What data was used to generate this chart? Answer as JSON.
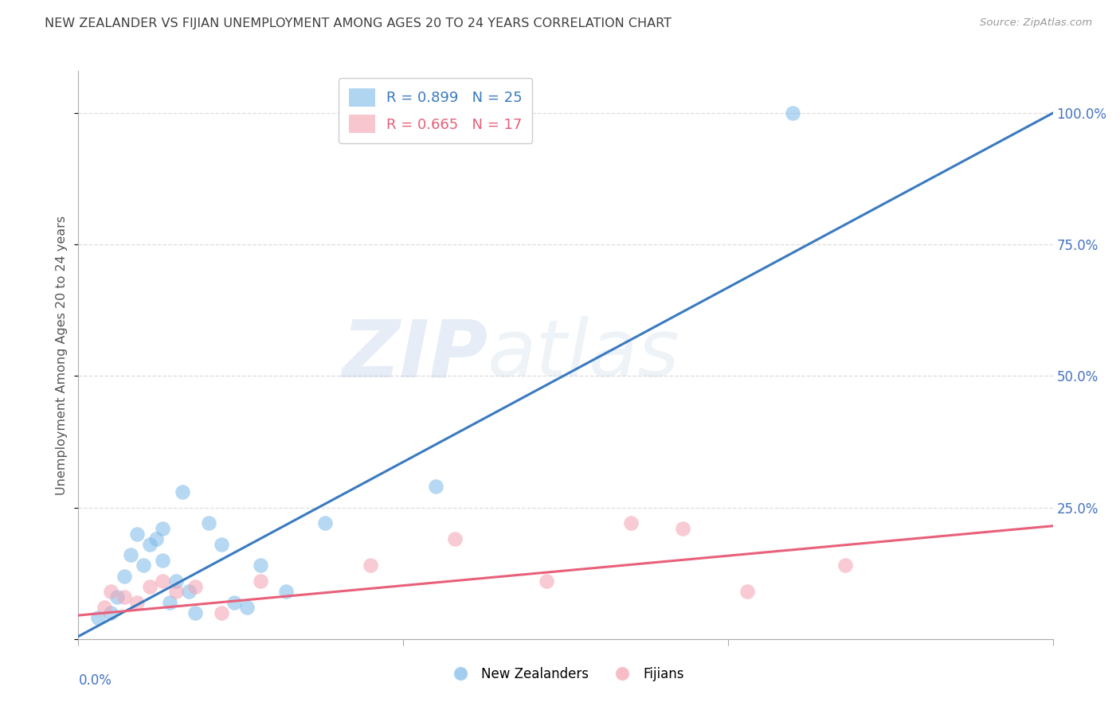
{
  "title": "NEW ZEALANDER VS FIJIAN UNEMPLOYMENT AMONG AGES 20 TO 24 YEARS CORRELATION CHART",
  "source": "Source: ZipAtlas.com",
  "ylabel": "Unemployment Among Ages 20 to 24 years",
  "bg_color": "#ffffff",
  "watermark_zip": "ZIP",
  "watermark_atlas": "atlas",
  "nz_color": "#7cb9e8",
  "fij_color": "#f4a0b0",
  "nz_line_color": "#3a7abf",
  "fij_line_color": "#e8607a",
  "nz_r": 0.899,
  "nz_n": 25,
  "fij_r": 0.665,
  "fij_n": 17,
  "xlim": [
    0.0,
    0.15
  ],
  "ylim": [
    0.0,
    1.08
  ],
  "yticks": [
    0.25,
    0.5,
    0.75,
    1.0
  ],
  "ytick_labels": [
    "25.0%",
    "50.0%",
    "75.0%",
    "100.0%"
  ],
  "nz_scatter_x": [
    0.003,
    0.005,
    0.006,
    0.007,
    0.008,
    0.009,
    0.01,
    0.011,
    0.012,
    0.013,
    0.013,
    0.014,
    0.015,
    0.016,
    0.017,
    0.018,
    0.02,
    0.022,
    0.024,
    0.026,
    0.028,
    0.032,
    0.038,
    0.055,
    0.11
  ],
  "nz_scatter_y": [
    0.04,
    0.05,
    0.08,
    0.12,
    0.16,
    0.2,
    0.14,
    0.18,
    0.19,
    0.21,
    0.15,
    0.07,
    0.11,
    0.28,
    0.09,
    0.05,
    0.22,
    0.18,
    0.07,
    0.06,
    0.14,
    0.09,
    0.22,
    0.29,
    1.0
  ],
  "fij_scatter_x": [
    0.004,
    0.005,
    0.007,
    0.009,
    0.011,
    0.013,
    0.015,
    0.018,
    0.022,
    0.028,
    0.045,
    0.058,
    0.072,
    0.085,
    0.093,
    0.103,
    0.118
  ],
  "fij_scatter_y": [
    0.06,
    0.09,
    0.08,
    0.07,
    0.1,
    0.11,
    0.09,
    0.1,
    0.05,
    0.11,
    0.14,
    0.19,
    0.11,
    0.22,
    0.21,
    0.09,
    0.14
  ],
  "nz_trendline_x": [
    0.0,
    0.15
  ],
  "nz_trendline_y": [
    0.005,
    1.0
  ],
  "fij_trendline_x": [
    0.0,
    0.15
  ],
  "fij_trendline_y": [
    0.045,
    0.215
  ],
  "axis_color": "#aaaaaa",
  "grid_color": "#dddddd",
  "tick_label_color": "#4472c4",
  "title_color": "#404040",
  "ylabel_color": "#555555"
}
